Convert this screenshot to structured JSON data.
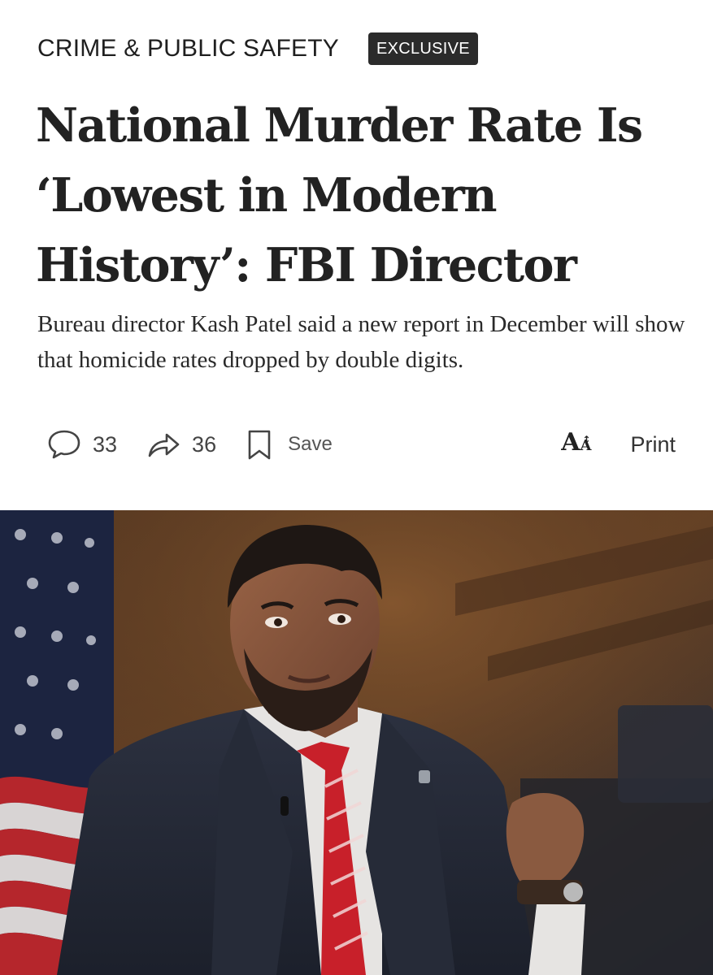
{
  "section": "CRIME & PUBLIC SAFETY",
  "badge": "EXCLUSIVE",
  "headline": "National Murder Rate Is ‘Lowest in Modern History’: FBI Director",
  "dek": "Bureau director Kash Patel said a new report in December will show that homicide rates dropped by double digits.",
  "actions": {
    "comments_count": "33",
    "shares_count": "36",
    "save_label": "Save",
    "print_label": "Print"
  },
  "icons": {
    "comments": "speech-bubble-icon",
    "share": "share-arrow-icon",
    "save": "bookmark-icon",
    "text_size": "text-size-icon"
  },
  "colors": {
    "badge_bg": "#2b2b2b",
    "text": "#1f1f1f",
    "tie_red": "#c8202a",
    "suit": "#232838"
  }
}
